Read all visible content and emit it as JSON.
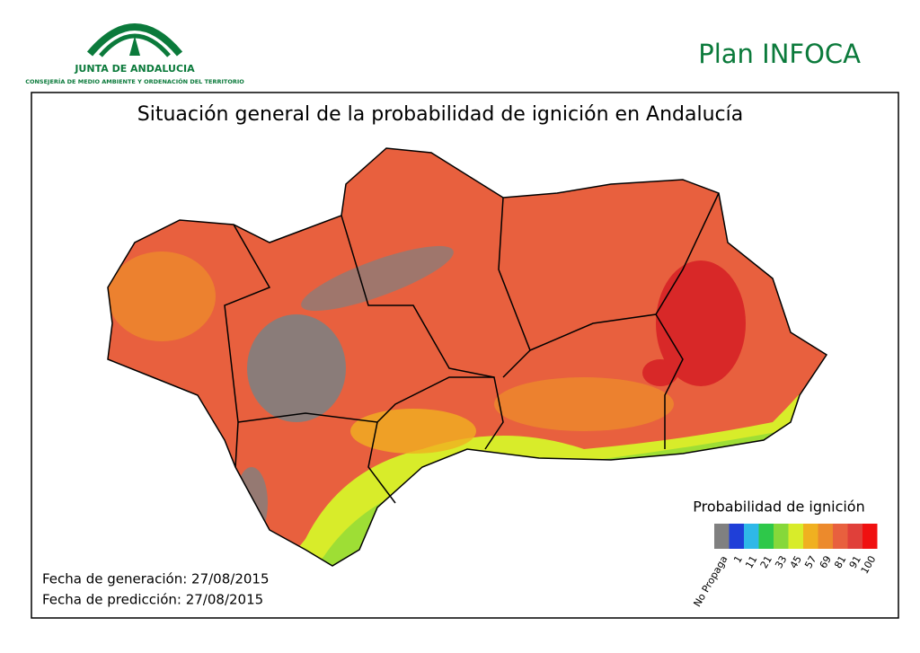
{
  "header": {
    "org_name": "JUNTA DE ANDALUCIA",
    "org_department": "CONSEJERÍA DE MEDIO AMBIENTE Y ORDENACIÓN DEL TERRITORIO",
    "plan": "Plan INFOCA"
  },
  "map": {
    "title": "Situación general de la probabilidad de ignición en Andalucía",
    "legend": {
      "title": "Probabilidad de ignición",
      "entries": [
        {
          "label": "No Propaga",
          "color": "#808080"
        },
        {
          "label": "1",
          "color": "#1f3fd8"
        },
        {
          "label": "11",
          "color": "#2fb8e8"
        },
        {
          "label": "21",
          "color": "#2ec84a"
        },
        {
          "label": "33",
          "color": "#86d83a"
        },
        {
          "label": "45",
          "color": "#d8ec2a"
        },
        {
          "label": "57",
          "color": "#f0b020"
        },
        {
          "label": "69",
          "color": "#ec8a2c"
        },
        {
          "label": "81",
          "color": "#e8603e"
        },
        {
          "label": "91",
          "color": "#e0403a"
        },
        {
          "label": "100",
          "color": "#f01010"
        }
      ]
    },
    "generation_date": "Fecha de generación: 27/08/2015",
    "prediction_date": "Fecha de predicción: 27/08/2015"
  }
}
